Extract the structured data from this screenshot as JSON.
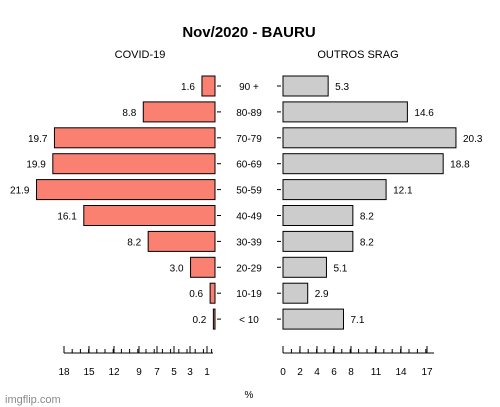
{
  "chart_data": {
    "type": "bar",
    "title": "Nov/2020 - BAURU",
    "categories": [
      "90 +",
      "80-89",
      "70-79",
      "60-69",
      "50-59",
      "40-49",
      "30-39",
      "20-29",
      "10-19",
      "< 10"
    ],
    "series": [
      {
        "name": "COVID-19",
        "values": [
          1.6,
          8.8,
          19.7,
          19.9,
          21.9,
          16.1,
          8.2,
          3.0,
          0.6,
          0.2
        ],
        "value_labels": [
          "1.6",
          "8.8",
          "19.7",
          "19.9",
          "21.9",
          "16.1",
          "8.2",
          "3.0",
          "0.6",
          "0.2"
        ],
        "color": "#fa8072",
        "side": "left"
      },
      {
        "name": "OUTROS SRAG",
        "values": [
          5.3,
          14.6,
          20.3,
          18.8,
          12.1,
          8.2,
          8.2,
          5.1,
          2.9,
          7.1
        ],
        "value_labels": [
          "5.3",
          "14.6",
          "20.3",
          "18.8",
          "12.1",
          "8.2",
          "8.2",
          "5.1",
          "2.9",
          "7.1"
        ],
        "color": "#cccccc",
        "side": "right"
      }
    ],
    "left_axis_ticks": [
      "18",
      "15",
      "12",
      "9",
      "7",
      "5",
      "3",
      "1"
    ],
    "right_axis_ticks": [
      "0",
      "2",
      "4",
      "6",
      "8",
      "11",
      "14",
      "17"
    ],
    "xlabel": "%",
    "grid": false
  },
  "watermark": "imgflip.com"
}
